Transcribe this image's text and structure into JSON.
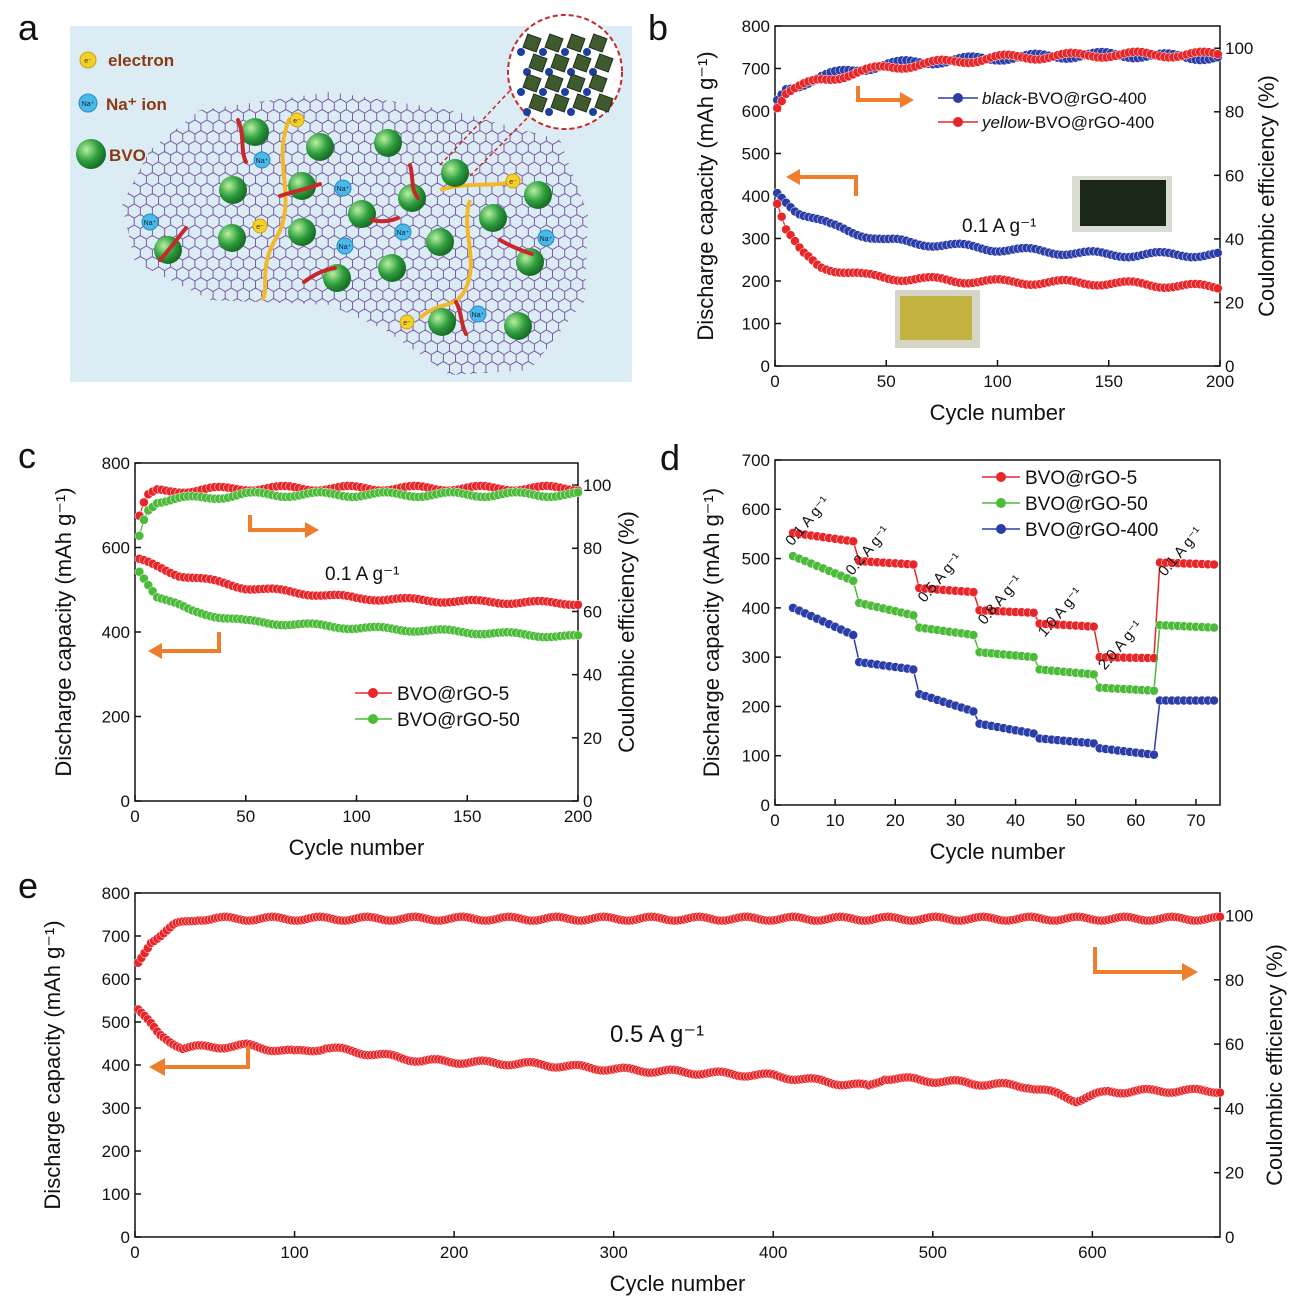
{
  "panel_letters": [
    "a",
    "b",
    "c",
    "d",
    "e"
  ],
  "schematic": {
    "legend": {
      "electron": "electron",
      "electron_symbol": "e⁻",
      "na_ion": "Na⁺ ion",
      "na_symbol": "Na⁺",
      "bvo": "BVO"
    },
    "colors": {
      "background": "#dcecf5",
      "graphene": "#7b5ea7",
      "bvo": "#2e9e3e",
      "na": "#4ab8e8",
      "electron": "#f5d02a",
      "arrow": "#c8282a",
      "path": "#f2b82c"
    }
  },
  "chart_data": [
    {
      "panel": "b",
      "type": "scatter",
      "xlabel": "Cycle number",
      "ylabel": "Discharge capacity (mAh g⁻¹)",
      "y2label": "Coulombic efficiency (%)",
      "xlim": [
        0,
        200
      ],
      "ylim": [
        0,
        800
      ],
      "y2lim": [
        0,
        107
      ],
      "xticks": [
        0,
        50,
        100,
        150,
        200
      ],
      "yticks": [
        0,
        100,
        200,
        300,
        400,
        500,
        600,
        700,
        800
      ],
      "y2ticks": [
        0,
        20,
        40,
        60,
        80,
        100
      ],
      "annotation": "0.1 A g⁻¹",
      "legend": [
        {
          "name": "black-BVO@rGO-400",
          "italic": "black",
          "rest": "-BVO@rGO-400",
          "color": "#2b3ea8"
        },
        {
          "name": "yellow-BVO@rGO-400",
          "italic": "yellow",
          "rest": "-BVO@rGO-400",
          "color": "#e8262a"
        }
      ],
      "series": [
        {
          "name": "black-BVO@rGO-400 capacity",
          "axis": "left",
          "color": "#2b3ea8",
          "x": [
            1,
            10,
            25,
            50,
            100,
            150,
            200
          ],
          "y": [
            405,
            365,
            330,
            295,
            275,
            262,
            262
          ]
        },
        {
          "name": "yellow-BVO@rGO-400 capacity",
          "axis": "left",
          "color": "#e8262a",
          "x": [
            1,
            5,
            12,
            20,
            40,
            60,
            100,
            150,
            200
          ],
          "y": [
            385,
            320,
            265,
            235,
            212,
            205,
            198,
            195,
            185
          ]
        },
        {
          "name": "black-BVO@rGO-400 CE",
          "axis": "right",
          "color": "#2b3ea8",
          "x": [
            1,
            5,
            20,
            50,
            100,
            150,
            200
          ],
          "y": [
            83,
            87,
            91,
            95,
            97,
            98,
            97
          ]
        },
        {
          "name": "yellow-BVO@rGO-400 CE",
          "axis": "right",
          "color": "#e8262a",
          "x": [
            1,
            5,
            20,
            50,
            100,
            150,
            200
          ],
          "y": [
            82,
            86,
            90,
            94,
            97,
            98,
            98
          ]
        }
      ]
    },
    {
      "panel": "c",
      "type": "scatter",
      "xlabel": "Cycle number",
      "ylabel": "Discharge capacity (mAh g⁻¹)",
      "y2label": "Coulombic efficiency (%)",
      "xlim": [
        0,
        200
      ],
      "ylim": [
        0,
        800
      ],
      "y2lim": [
        0,
        107
      ],
      "xticks": [
        0,
        50,
        100,
        150,
        200
      ],
      "yticks": [
        0,
        200,
        400,
        600,
        800
      ],
      "y2ticks": [
        0,
        20,
        40,
        60,
        80,
        100
      ],
      "annotation": "0.1 A g⁻¹",
      "legend": [
        {
          "name": "BVO@rGO-5",
          "color": "#e8262a"
        },
        {
          "name": "BVO@rGO-50",
          "color": "#4cbb3a"
        }
      ],
      "series": [
        {
          "name": "BVO@rGO-5 capacity",
          "axis": "left",
          "color": "#e8262a",
          "x": [
            2,
            20,
            50,
            100,
            150,
            200
          ],
          "y": [
            570,
            535,
            505,
            480,
            472,
            468
          ]
        },
        {
          "name": "BVO@rGO-50 capacity",
          "axis": "left",
          "color": "#4cbb3a",
          "x": [
            2,
            10,
            25,
            50,
            100,
            150,
            200
          ],
          "y": [
            545,
            485,
            450,
            425,
            410,
            400,
            388
          ]
        },
        {
          "name": "BVO@rGO-5 CE",
          "axis": "right",
          "color": "#e8262a",
          "x": [
            2,
            5,
            10,
            50,
            100,
            150,
            200
          ],
          "y": [
            90,
            96,
            98,
            99,
            99,
            99,
            99
          ]
        },
        {
          "name": "BVO@rGO-50 CE",
          "axis": "right",
          "color": "#4cbb3a",
          "x": [
            2,
            5,
            10,
            50,
            100,
            150,
            200
          ],
          "y": [
            84,
            92,
            95,
            97,
            97,
            97,
            97
          ]
        }
      ]
    },
    {
      "panel": "d",
      "type": "line",
      "xlabel": "Cycle number",
      "ylabel": "Discharge capacity (mAh g⁻¹)",
      "xlim": [
        0,
        74
      ],
      "ylim": [
        0,
        700
      ],
      "xticks": [
        0,
        10,
        20,
        30,
        40,
        50,
        60,
        70
      ],
      "yticks": [
        0,
        100,
        200,
        300,
        400,
        500,
        600,
        700
      ],
      "rate_labels": [
        {
          "text": "0.1 A g⁻¹",
          "x": 6,
          "y": 570
        },
        {
          "text": "0.2 A g⁻¹",
          "x": 16,
          "y": 510
        },
        {
          "text": "0.5 A g⁻¹",
          "x": 28,
          "y": 455
        },
        {
          "text": "0.8 A g⁻¹",
          "x": 38,
          "y": 410
        },
        {
          "text": "1.0 A g⁻¹",
          "x": 48,
          "y": 385
        },
        {
          "text": "2.0 A g⁻¹",
          "x": 58,
          "y": 318
        },
        {
          "text": "0.1 A g⁻¹",
          "x": 68,
          "y": 508
        }
      ],
      "legend": [
        {
          "name": "BVO@rGO-5",
          "color": "#e8262a"
        },
        {
          "name": "BVO@rGO-50",
          "color": "#4cbb3a"
        },
        {
          "name": "BVO@rGO-400",
          "color": "#2b3ea8"
        }
      ],
      "series": [
        {
          "name": "BVO@rGO-5",
          "color": "#e8262a",
          "x": [
            3,
            13,
            14,
            23,
            24,
            33,
            34,
            43,
            44,
            53,
            54,
            63,
            64,
            73
          ],
          "y": [
            552,
            535,
            495,
            488,
            440,
            432,
            395,
            390,
            368,
            362,
            300,
            298,
            492,
            488
          ]
        },
        {
          "name": "BVO@rGO-50",
          "color": "#4cbb3a",
          "x": [
            3,
            13,
            14,
            23,
            24,
            33,
            34,
            43,
            44,
            53,
            54,
            63,
            64,
            73
          ],
          "y": [
            505,
            455,
            410,
            385,
            360,
            345,
            310,
            300,
            275,
            265,
            238,
            232,
            365,
            360
          ]
        },
        {
          "name": "BVO@rGO-400",
          "color": "#2b3ea8",
          "x": [
            3,
            13,
            14,
            23,
            24,
            33,
            34,
            43,
            44,
            53,
            54,
            63,
            64,
            73
          ],
          "y": [
            400,
            345,
            290,
            275,
            225,
            190,
            165,
            145,
            135,
            125,
            115,
            102,
            212,
            212
          ]
        }
      ]
    },
    {
      "panel": "e",
      "type": "scatter",
      "xlabel": "Cycle number",
      "ylabel": "Discharge capacity (mAh g⁻¹)",
      "y2label": "Coulombic efficiency (%)",
      "xlim": [
        0,
        680
      ],
      "ylim": [
        0,
        800
      ],
      "y2lim": [
        0,
        107
      ],
      "xticks": [
        0,
        100,
        200,
        300,
        400,
        500,
        600
      ],
      "yticks": [
        0,
        100,
        200,
        300,
        400,
        500,
        600,
        700,
        800
      ],
      "y2ticks": [
        0,
        20,
        40,
        60,
        80,
        100
      ],
      "annotation": "0.5 A g⁻¹",
      "series": [
        {
          "name": "capacity",
          "axis": "left",
          "color": "#e8262a",
          "x": [
            2,
            15,
            30,
            70,
            100,
            120,
            180,
            250,
            300,
            400,
            460,
            470,
            560,
            580,
            590,
            610,
            640,
            680
          ],
          "y": [
            530,
            470,
            440,
            445,
            430,
            440,
            410,
            402,
            390,
            375,
            350,
            370,
            350,
            330,
            318,
            338,
            340,
            340
          ]
        },
        {
          "name": "coulombic efficiency",
          "axis": "right",
          "color": "#e8262a",
          "x": [
            2,
            10,
            25,
            40,
            100,
            200,
            300,
            400,
            500,
            600,
            680
          ],
          "y": [
            85,
            92,
            97,
            99,
            99,
            99,
            99,
            99,
            99,
            99,
            99
          ]
        }
      ]
    }
  ]
}
